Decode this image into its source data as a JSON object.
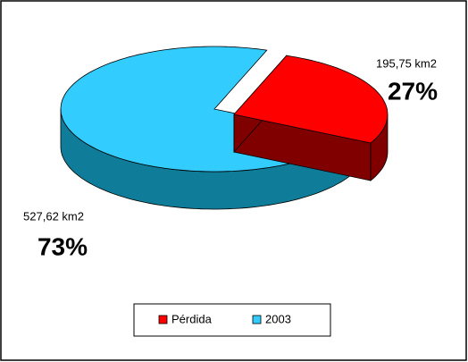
{
  "chart_data": {
    "type": "pie",
    "categories": [
      "Pérdida",
      "2003"
    ],
    "values": [
      27,
      73
    ],
    "value_labels": [
      "27%",
      "73%"
    ],
    "areas": [
      195.75,
      527.62
    ],
    "area_labels": [
      "195,75 km2",
      "527,62 km2"
    ],
    "colors": [
      "#ff0000",
      "#33ccff"
    ],
    "side_colors": [
      "#800000",
      "#0f7d99"
    ],
    "legend": "bottom"
  }
}
